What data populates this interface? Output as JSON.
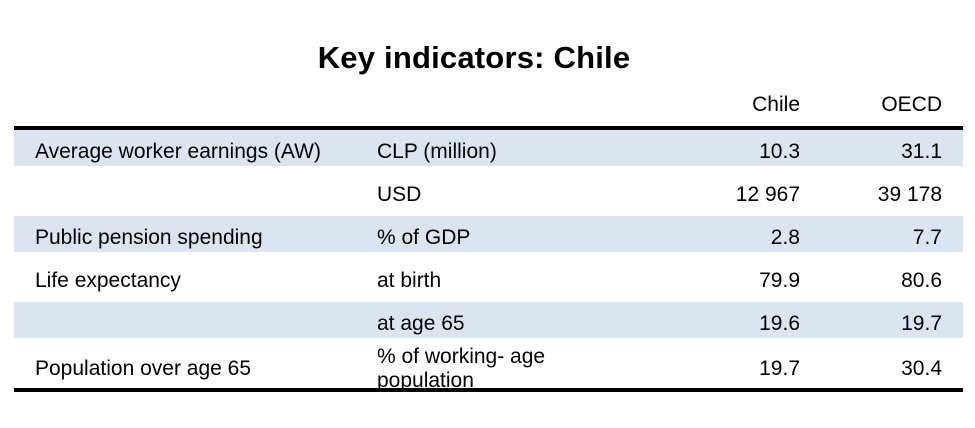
{
  "title": "Key indicators: Chile",
  "colors": {
    "row_shade": "#dbe5f1",
    "rule": "#000000",
    "text": "#000000"
  },
  "table": {
    "col_headers": {
      "chile": "Chile",
      "oecd": "OECD"
    },
    "rows": [
      {
        "indicator": "Average worker earnings (AW)",
        "unit": "CLP (million)",
        "chile": "10.3",
        "oecd": "31.1"
      },
      {
        "indicator": "",
        "unit": "USD",
        "chile": "12 967",
        "oecd": "39 178"
      },
      {
        "indicator": "Public pension spending",
        "unit": "% of GDP",
        "chile": "2.8",
        "oecd": "7.7"
      },
      {
        "indicator": "Life expectancy",
        "unit": "at birth",
        "chile": "79.9",
        "oecd": "80.6"
      },
      {
        "indicator": "",
        "unit": "at age 65",
        "chile": "19.6",
        "oecd": "19.7"
      },
      {
        "indicator": "Population over age 65",
        "unit": "% of working- age population",
        "chile": "19.7",
        "oecd": "30.4"
      }
    ]
  }
}
